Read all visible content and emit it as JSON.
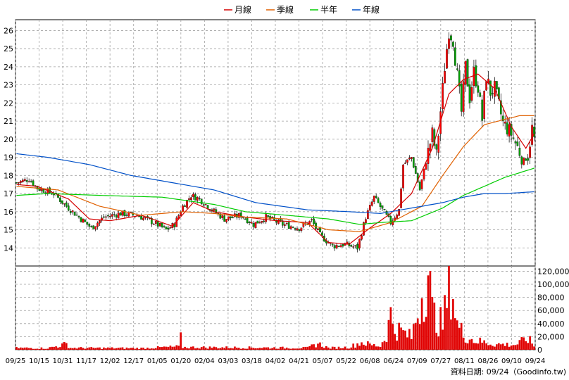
{
  "chart_data": {
    "type": "candlestick",
    "legend": [
      {
        "name": "月線",
        "color": "#d40000"
      },
      {
        "name": "季線",
        "color": "#e06000"
      },
      {
        "name": "半年",
        "color": "#00cc00"
      },
      {
        "name": "年線",
        "color": "#0050c8"
      }
    ],
    "legend_placement": "top-center",
    "colors": {
      "up": "#ff0000",
      "down": "#00a000",
      "volume": "#e00000",
      "grid": "#a0a0a0"
    },
    "price_axis": {
      "ylim": [
        13,
        26.6
      ],
      "ticks": [
        14,
        15,
        16,
        17,
        18,
        19,
        20,
        21,
        22,
        23,
        24,
        25,
        26
      ],
      "position": "left"
    },
    "volume_axis": {
      "ylim": [
        0,
        128000
      ],
      "ticks": [
        0,
        20000,
        40000,
        60000,
        80000,
        100000,
        120000
      ],
      "tick_labels": [
        "0",
        "20,000",
        "40,000",
        "60,000",
        "80,000",
        "100,000",
        "120,000"
      ],
      "position": "right"
    },
    "x_tick_labels": [
      "09/25",
      "10/15",
      "10/31",
      "11/17",
      "12/02",
      "12/17",
      "01/05",
      "01/20",
      "02/04",
      "03/03",
      "03/18",
      "04/02",
      "04/21",
      "05/07",
      "05/22",
      "06/08",
      "06/24",
      "07/09",
      "07/27",
      "08/11",
      "08/26",
      "09/10",
      "09/24"
    ],
    "grid": true,
    "num_bars": 250,
    "price_anchors": [
      [
        0,
        17.6
      ],
      [
        6,
        17.8
      ],
      [
        10,
        17.3
      ],
      [
        18,
        17.0
      ],
      [
        24,
        16.3
      ],
      [
        30,
        15.7
      ],
      [
        36,
        15.1
      ],
      [
        42,
        15.7
      ],
      [
        50,
        15.9
      ],
      [
        58,
        15.8
      ],
      [
        66,
        15.4
      ],
      [
        72,
        15.0
      ],
      [
        76,
        15.3
      ],
      [
        80,
        16.3
      ],
      [
        84,
        16.9
      ],
      [
        88,
        16.7
      ],
      [
        94,
        16.1
      ],
      [
        100,
        15.6
      ],
      [
        108,
        15.8
      ],
      [
        114,
        15.3
      ],
      [
        120,
        15.7
      ],
      [
        128,
        15.3
      ],
      [
        136,
        15.1
      ],
      [
        142,
        15.5
      ],
      [
        146,
        14.7
      ],
      [
        152,
        14.1
      ],
      [
        158,
        14.2
      ],
      [
        164,
        14.0
      ],
      [
        168,
        15.7
      ],
      [
        172,
        16.8
      ],
      [
        176,
        16.1
      ],
      [
        180,
        15.4
      ],
      [
        184,
        16.1
      ],
      [
        186,
        18.6
      ],
      [
        190,
        19.0
      ],
      [
        194,
        17.2
      ],
      [
        198,
        19.3
      ],
      [
        200,
        20.3
      ],
      [
        202,
        19.1
      ],
      [
        206,
        24.0
      ],
      [
        208,
        26.0
      ],
      [
        210,
        25.5
      ],
      [
        212,
        23.5
      ],
      [
        214,
        21.5
      ],
      [
        216,
        24.0
      ],
      [
        218,
        22.3
      ],
      [
        220,
        23.7
      ],
      [
        222,
        22.9
      ],
      [
        224,
        21.1
      ],
      [
        226,
        23.5
      ],
      [
        228,
        22.6
      ],
      [
        230,
        22.8
      ],
      [
        234,
        20.9
      ],
      [
        238,
        20.3
      ],
      [
        242,
        19.3
      ],
      [
        244,
        18.8
      ],
      [
        246,
        19.1
      ],
      [
        248,
        20.6
      ],
      [
        249,
        20.0
      ]
    ],
    "ma_month": [
      [
        0,
        17.5
      ],
      [
        10,
        17.4
      ],
      [
        25,
        16.7
      ],
      [
        35,
        15.6
      ],
      [
        45,
        15.5
      ],
      [
        60,
        15.8
      ],
      [
        75,
        15.2
      ],
      [
        85,
        16.5
      ],
      [
        95,
        16.0
      ],
      [
        110,
        15.7
      ],
      [
        125,
        15.5
      ],
      [
        140,
        15.4
      ],
      [
        150,
        14.3
      ],
      [
        160,
        14.2
      ],
      [
        170,
        15.1
      ],
      [
        180,
        15.9
      ],
      [
        190,
        17.0
      ],
      [
        200,
        19.5
      ],
      [
        208,
        22.5
      ],
      [
        215,
        23.3
      ],
      [
        222,
        23.6
      ],
      [
        230,
        22.8
      ],
      [
        238,
        20.7
      ],
      [
        245,
        19.5
      ],
      [
        249,
        20.3
      ]
    ],
    "ma_season": [
      [
        0,
        17.4
      ],
      [
        20,
        17.2
      ],
      [
        40,
        16.3
      ],
      [
        60,
        15.8
      ],
      [
        80,
        16.0
      ],
      [
        95,
        15.9
      ],
      [
        110,
        15.7
      ],
      [
        130,
        15.6
      ],
      [
        150,
        15.0
      ],
      [
        165,
        14.9
      ],
      [
        180,
        15.4
      ],
      [
        195,
        16.3
      ],
      [
        205,
        18.0
      ],
      [
        215,
        19.6
      ],
      [
        225,
        20.8
      ],
      [
        235,
        21.1
      ],
      [
        242,
        21.3
      ],
      [
        249,
        21.3
      ]
    ],
    "ma_half": [
      [
        0,
        16.9
      ],
      [
        15,
        17.0
      ],
      [
        40,
        16.9
      ],
      [
        70,
        16.8
      ],
      [
        95,
        16.4
      ],
      [
        110,
        16.0
      ],
      [
        130,
        15.8
      ],
      [
        150,
        15.6
      ],
      [
        165,
        15.3
      ],
      [
        175,
        15.4
      ],
      [
        190,
        15.5
      ],
      [
        205,
        16.2
      ],
      [
        215,
        16.9
      ],
      [
        225,
        17.4
      ],
      [
        235,
        17.9
      ],
      [
        249,
        18.4
      ]
    ],
    "ma_year": [
      [
        0,
        19.2
      ],
      [
        15,
        19.0
      ],
      [
        35,
        18.6
      ],
      [
        55,
        18.0
      ],
      [
        75,
        17.6
      ],
      [
        95,
        17.2
      ],
      [
        115,
        16.5
      ],
      [
        140,
        16.1
      ],
      [
        160,
        16.0
      ],
      [
        175,
        15.9
      ],
      [
        190,
        16.2
      ],
      [
        205,
        16.5
      ],
      [
        215,
        16.8
      ],
      [
        225,
        17.0
      ],
      [
        235,
        17.0
      ],
      [
        249,
        17.1
      ]
    ],
    "volume_anchors": [
      [
        0,
        3000
      ],
      [
        15,
        2500
      ],
      [
        24,
        9000
      ],
      [
        26,
        3000
      ],
      [
        60,
        2500
      ],
      [
        78,
        5000
      ],
      [
        79,
        18000
      ],
      [
        80,
        4000
      ],
      [
        140,
        3000
      ],
      [
        145,
        10000
      ],
      [
        150,
        3000
      ],
      [
        160,
        4000
      ],
      [
        166,
        12000
      ],
      [
        170,
        8000
      ],
      [
        175,
        6000
      ],
      [
        178,
        25000
      ],
      [
        180,
        55000
      ],
      [
        182,
        35000
      ],
      [
        190,
        20000
      ],
      [
        198,
        130000
      ],
      [
        200,
        60000
      ],
      [
        205,
        40000
      ],
      [
        209,
        115000
      ],
      [
        212,
        40000
      ],
      [
        215,
        25000
      ],
      [
        220,
        15000
      ],
      [
        230,
        9000
      ],
      [
        240,
        8000
      ],
      [
        246,
        18000
      ],
      [
        249,
        6000
      ]
    ]
  },
  "footer": "資料日期: 09/24（Goodinfo.tw)"
}
